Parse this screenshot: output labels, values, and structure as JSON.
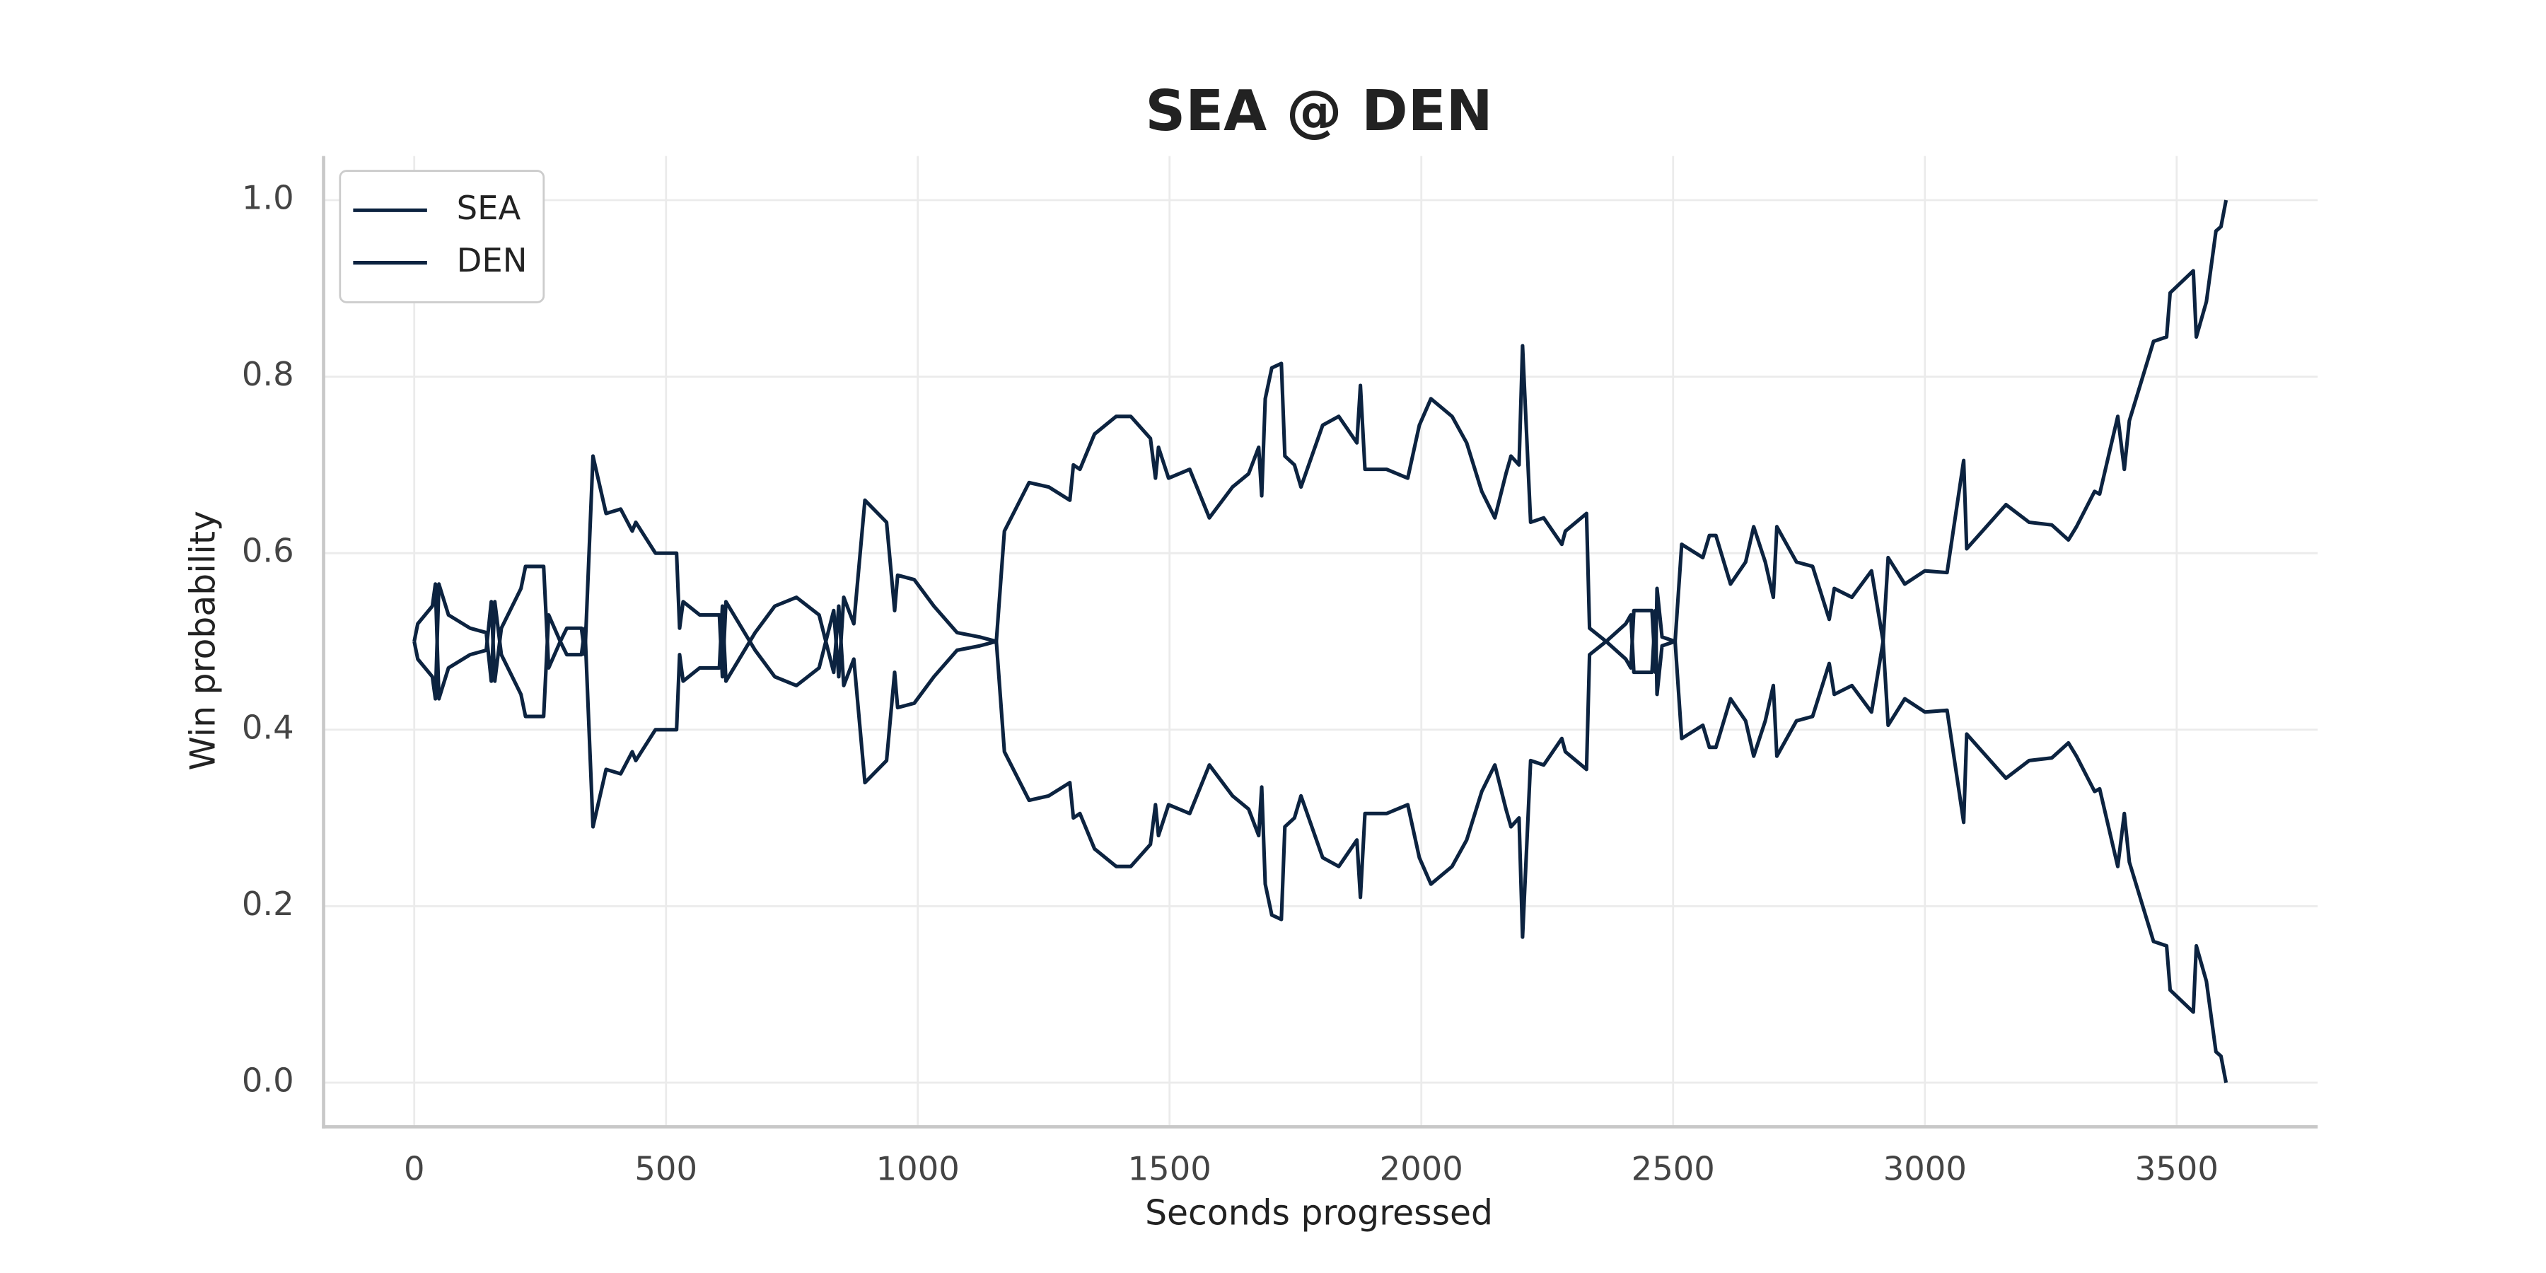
{
  "chart_data": {
    "type": "line",
    "title": "SEA @ DEN",
    "x_label": "Seconds progressed",
    "y_label": "Win probability",
    "x": [
      0,
      7,
      36,
      42,
      49,
      68,
      111,
      143,
      153,
      160,
      173,
      212,
      221,
      257,
      267,
      290,
      303,
      332,
      339,
      355,
      381,
      410,
      433,
      440,
      479,
      521,
      527,
      534,
      567,
      606,
      612,
      619,
      677,
      716,
      759,
      804,
      833,
      843,
      853,
      873,
      895,
      938,
      954,
      960,
      993,
      1032,
      1078,
      1123,
      1156,
      1172,
      1221,
      1260,
      1302,
      1309,
      1322,
      1351,
      1394,
      1423,
      1462,
      1472,
      1478,
      1498,
      1540,
      1579,
      1625,
      1657,
      1677,
      1683,
      1690,
      1703,
      1722,
      1729,
      1748,
      1761,
      1804,
      1836,
      1872,
      1879,
      1888,
      1931,
      1973,
      1996,
      2019,
      2061,
      2090,
      2120,
      2146,
      2168,
      2178,
      2194,
      2201,
      2217,
      2243,
      2279,
      2286,
      2328,
      2334,
      2367,
      2406,
      2416,
      2422,
      2458,
      2465,
      2468,
      2478,
      2504,
      2517,
      2559,
      2572,
      2585,
      2614,
      2644,
      2660,
      2683,
      2699,
      2706,
      2745,
      2777,
      2810,
      2820,
      2855,
      2894,
      2917,
      2927,
      2960,
      3000,
      3044,
      3077,
      3083,
      3161,
      3207,
      3252,
      3285,
      3301,
      3337,
      3347,
      3383,
      3396,
      3406,
      3454,
      3480,
      3487,
      3533,
      3539,
      3559,
      3578,
      3588,
      3598
    ],
    "series": [
      {
        "name": "SEA",
        "color": "#0c2340",
        "values": [
          0.5,
          0.52,
          0.54,
          0.565,
          0.435,
          0.47,
          0.485,
          0.49,
          0.545,
          0.455,
          0.515,
          0.56,
          0.585,
          0.585,
          0.47,
          0.5,
          0.515,
          0.515,
          0.485,
          0.71,
          0.645,
          0.65,
          0.625,
          0.635,
          0.6,
          0.6,
          0.515,
          0.545,
          0.53,
          0.53,
          0.46,
          0.545,
          0.49,
          0.46,
          0.45,
          0.47,
          0.535,
          0.46,
          0.55,
          0.52,
          0.66,
          0.635,
          0.535,
          0.575,
          0.57,
          0.54,
          0.51,
          0.505,
          0.5,
          0.625,
          0.68,
          0.675,
          0.66,
          0.7,
          0.695,
          0.735,
          0.755,
          0.755,
          0.73,
          0.685,
          0.72,
          0.685,
          0.695,
          0.64,
          0.675,
          0.69,
          0.72,
          0.665,
          0.775,
          0.81,
          0.815,
          0.71,
          0.7,
          0.675,
          0.745,
          0.755,
          0.725,
          0.79,
          0.695,
          0.695,
          0.685,
          0.745,
          0.775,
          0.755,
          0.725,
          0.67,
          0.64,
          0.69,
          0.71,
          0.7,
          0.835,
          0.635,
          0.64,
          0.61,
          0.625,
          0.645,
          0.515,
          0.5,
          0.48,
          0.47,
          0.535,
          0.535,
          0.465,
          0.56,
          0.505,
          0.5,
          0.39,
          0.405,
          0.38,
          0.38,
          0.435,
          0.41,
          0.37,
          0.41,
          0.45,
          0.37,
          0.41,
          0.415,
          0.475,
          0.44,
          0.45,
          0.42,
          0.5,
          0.595,
          0.565,
          0.58,
          0.578,
          0.705,
          0.605,
          0.655,
          0.635,
          0.632,
          0.615,
          0.63,
          0.67,
          0.667,
          0.755,
          0.695,
          0.75,
          0.84,
          0.845,
          0.895,
          0.92,
          0.845,
          0.885,
          0.965,
          0.97,
          1.0
        ]
      },
      {
        "name": "DEN",
        "color": "#0c2340",
        "values": [
          0.5,
          0.48,
          0.46,
          0.435,
          0.565,
          0.53,
          0.515,
          0.51,
          0.455,
          0.545,
          0.485,
          0.44,
          0.415,
          0.415,
          0.53,
          0.5,
          0.485,
          0.485,
          0.515,
          0.29,
          0.355,
          0.35,
          0.375,
          0.365,
          0.4,
          0.4,
          0.485,
          0.455,
          0.47,
          0.47,
          0.54,
          0.455,
          0.51,
          0.54,
          0.55,
          0.53,
          0.465,
          0.54,
          0.45,
          0.48,
          0.34,
          0.365,
          0.465,
          0.425,
          0.43,
          0.46,
          0.49,
          0.495,
          0.5,
          0.375,
          0.32,
          0.325,
          0.34,
          0.3,
          0.305,
          0.265,
          0.245,
          0.245,
          0.27,
          0.315,
          0.28,
          0.315,
          0.305,
          0.36,
          0.325,
          0.31,
          0.28,
          0.335,
          0.225,
          0.19,
          0.185,
          0.29,
          0.3,
          0.325,
          0.255,
          0.245,
          0.275,
          0.21,
          0.305,
          0.305,
          0.315,
          0.255,
          0.225,
          0.245,
          0.275,
          0.33,
          0.36,
          0.31,
          0.29,
          0.3,
          0.165,
          0.365,
          0.36,
          0.39,
          0.375,
          0.355,
          0.485,
          0.5,
          0.52,
          0.53,
          0.465,
          0.465,
          0.535,
          0.44,
          0.495,
          0.5,
          0.61,
          0.595,
          0.62,
          0.62,
          0.565,
          0.59,
          0.63,
          0.59,
          0.55,
          0.63,
          0.59,
          0.585,
          0.525,
          0.56,
          0.55,
          0.58,
          0.5,
          0.405,
          0.435,
          0.42,
          0.422,
          0.295,
          0.395,
          0.345,
          0.365,
          0.368,
          0.385,
          0.37,
          0.33,
          0.333,
          0.245,
          0.305,
          0.25,
          0.16,
          0.155,
          0.105,
          0.08,
          0.155,
          0.115,
          0.035,
          0.03,
          0.0
        ]
      }
    ],
    "xlim": [
      -180,
      3780
    ],
    "ylim": [
      -0.05,
      1.05
    ],
    "xticks": [
      0,
      500,
      1000,
      1500,
      2000,
      2500,
      3000,
      3500
    ],
    "yticks": [
      {
        "value": 0,
        "label": "0.0"
      },
      0.2,
      0.4,
      0.6,
      0.8,
      {
        "value": 1,
        "label": "1.0"
      }
    ],
    "grid": true,
    "legend": "upper left"
  }
}
